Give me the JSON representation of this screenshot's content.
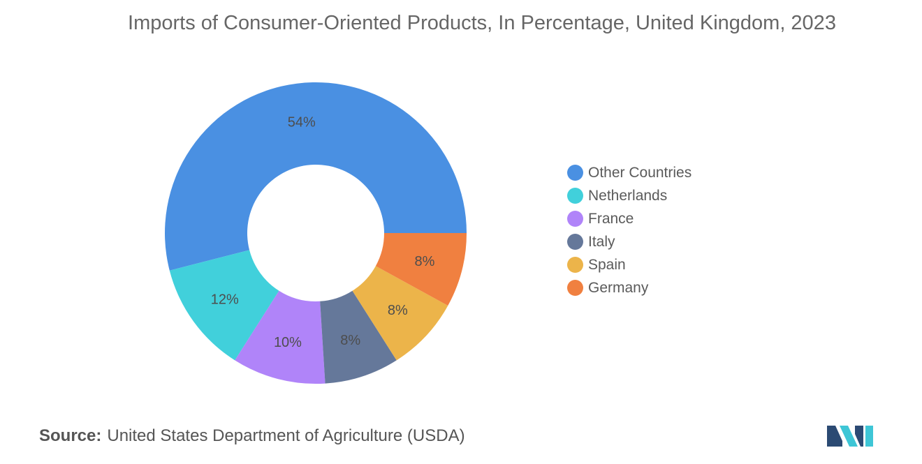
{
  "chart_data": {
    "type": "pie",
    "title": "Imports of Consumer-Oriented Products, In Percentage, United Kingdom, 2023",
    "categories": [
      "Other Countries",
      "Netherlands",
      "France",
      "Italy",
      "Spain",
      "Germany"
    ],
    "values": [
      54,
      12,
      10,
      8,
      8,
      8
    ],
    "labels": [
      "54%",
      "12%",
      "10%",
      "8%",
      "8%",
      "8%"
    ],
    "colors": [
      "#4a90e2",
      "#41d0db",
      "#b084f9",
      "#65789a",
      "#ecb44a",
      "#f08040"
    ],
    "donut": true,
    "legend_position": "right"
  },
  "source": {
    "label": "Source:",
    "text": "United States Department of Agriculture (USDA)"
  },
  "logo": {
    "colors": [
      "#2b4a73",
      "#3ec6d6"
    ]
  }
}
